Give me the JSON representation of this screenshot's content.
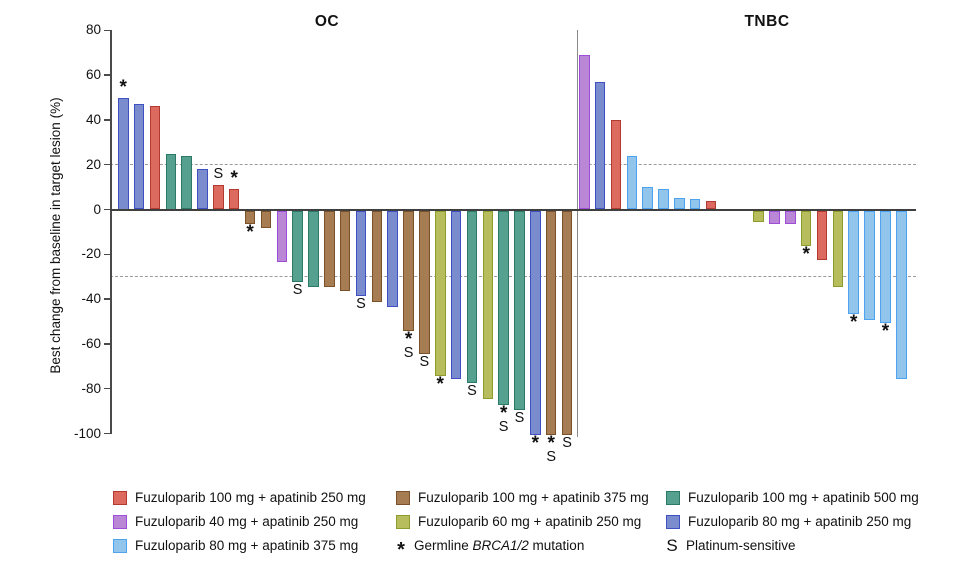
{
  "chart_data": {
    "type": "bar",
    "title": "",
    "ylabel": "Best change from baseline in target lesion (%)",
    "ylim": [
      -100,
      80
    ],
    "yticks": [
      80,
      60,
      40,
      20,
      0,
      -20,
      -40,
      -60,
      -80,
      -100
    ],
    "reference_lines": [
      20,
      -30
    ],
    "grid": "off",
    "legend_position": "bottom",
    "marker_meanings": {
      "*": "Germline BRCA1/2 mutation",
      "S": "Platinum-sensitive"
    },
    "series": {
      "f100_250": {
        "label": "Fuzuloparib 100 mg + apatinib 250 mg",
        "fill": "#DD6A5F",
        "border": "#B23A31"
      },
      "f40_250": {
        "label": "Fuzuloparib 40 mg + apatinib 250 mg",
        "fill": "#BA87D6",
        "border": "#9C4FD6"
      },
      "f80_375": {
        "label": "Fuzuloparib 80 mg + apatinib 375 mg",
        "fill": "#92C5EB",
        "border": "#4FA3EE"
      },
      "f100_375": {
        "label": "Fuzuloparib 100 mg + apatinib 375 mg",
        "fill": "#A67C52",
        "border": "#7A5128"
      },
      "f60_250": {
        "label": "Fuzuloparib 60 mg + apatinib 250 mg",
        "fill": "#B7BD5D",
        "border": "#8E9B2D"
      },
      "f100_500": {
        "label": "Fuzuloparib 100 mg + apatinib 500 mg",
        "fill": "#56A08F",
        "border": "#2A7A67"
      },
      "f80_250": {
        "label": "Fuzuloparib 80 mg + apatinib 250 mg",
        "fill": "#7B8CCE",
        "border": "#3F51C1"
      }
    },
    "groups": [
      {
        "name": "OC",
        "bars": [
          {
            "value": 50,
            "series": "f80_250",
            "marker": "*"
          },
          {
            "value": 47,
            "series": "f80_250"
          },
          {
            "value": 46,
            "series": "f100_250"
          },
          {
            "value": 25,
            "series": "f100_500"
          },
          {
            "value": 24,
            "series": "f100_500"
          },
          {
            "value": 18,
            "series": "f80_250"
          },
          {
            "value": 11,
            "series": "f100_250",
            "marker": "S"
          },
          {
            "value": 9,
            "series": "f100_250",
            "marker": "*"
          },
          {
            "value": -6,
            "series": "f100_375",
            "marker": "*"
          },
          {
            "value": -8,
            "series": "f100_375"
          },
          {
            "value": -23,
            "series": "f40_250"
          },
          {
            "value": -32,
            "series": "f100_500",
            "marker": "S"
          },
          {
            "value": -34,
            "series": "f100_500"
          },
          {
            "value": -34,
            "series": "f100_375"
          },
          {
            "value": -36,
            "series": "f100_375"
          },
          {
            "value": -38,
            "series": "f80_250",
            "marker": "S"
          },
          {
            "value": -41,
            "series": "f100_375"
          },
          {
            "value": -43,
            "series": "f80_250"
          },
          {
            "value": -54,
            "series": "f100_375",
            "marker": "*S"
          },
          {
            "value": -64,
            "series": "f100_375",
            "marker": "S"
          },
          {
            "value": -74,
            "series": "f60_250",
            "marker": "*"
          },
          {
            "value": -75,
            "series": "f80_250"
          },
          {
            "value": -77,
            "series": "f100_500",
            "marker": "S"
          },
          {
            "value": -84,
            "series": "f60_250"
          },
          {
            "value": -87,
            "series": "f100_500",
            "marker": "*S"
          },
          {
            "value": -89,
            "series": "f100_500",
            "marker": "S"
          },
          {
            "value": -100,
            "series": "f80_250",
            "marker": "*"
          },
          {
            "value": -100,
            "series": "f100_375",
            "marker": "*S"
          },
          {
            "value": -100,
            "series": "f100_375",
            "marker": "S"
          }
        ]
      },
      {
        "name": "TNBC",
        "bars": [
          {
            "value": 69,
            "series": "f40_250"
          },
          {
            "value": 57,
            "series": "f80_250"
          },
          {
            "value": 40,
            "series": "f100_250"
          },
          {
            "value": 24,
            "series": "f80_375"
          },
          {
            "value": 10,
            "series": "f80_375"
          },
          {
            "value": 9,
            "series": "f80_375"
          },
          {
            "value": 5,
            "series": "f80_375"
          },
          {
            "value": 4.5,
            "series": "f80_375"
          },
          {
            "value": 4,
            "series": "f100_250"
          },
          {
            "value": 0,
            "series": null
          },
          {
            "value": 0,
            "series": null
          },
          {
            "value": -5,
            "series": "f60_250"
          },
          {
            "value": -6,
            "series": "f40_250"
          },
          {
            "value": -6,
            "series": "f40_250"
          },
          {
            "value": -16,
            "series": "f60_250",
            "marker": "*"
          },
          {
            "value": -22,
            "series": "f100_250"
          },
          {
            "value": -34,
            "series": "f60_250"
          },
          {
            "value": -46,
            "series": "f80_375",
            "marker": "*"
          },
          {
            "value": -49,
            "series": "f80_375"
          },
          {
            "value": -50,
            "series": "f80_375",
            "marker": "*"
          },
          {
            "value": -75,
            "series": "f80_375"
          }
        ]
      }
    ]
  },
  "legend": {
    "columns": [
      {
        "items": [
          {
            "type": "swatch",
            "series": "f100_250"
          },
          {
            "type": "swatch",
            "series": "f40_250"
          },
          {
            "type": "swatch",
            "series": "f80_375"
          }
        ]
      },
      {
        "items": [
          {
            "type": "swatch",
            "series": "f100_375"
          },
          {
            "type": "swatch",
            "series": "f60_250"
          },
          {
            "type": "star",
            "parts": [
              {
                "text": "Germline "
              },
              {
                "text": "BRCA1/2",
                "italic": true
              },
              {
                "text": " mutation"
              }
            ]
          }
        ]
      },
      {
        "items": [
          {
            "type": "swatch",
            "series": "f100_500"
          },
          {
            "type": "swatch",
            "series": "f80_250"
          },
          {
            "type": "s-mark",
            "parts": [
              {
                "text": "Platinum-sensitive"
              }
            ]
          }
        ]
      }
    ]
  }
}
